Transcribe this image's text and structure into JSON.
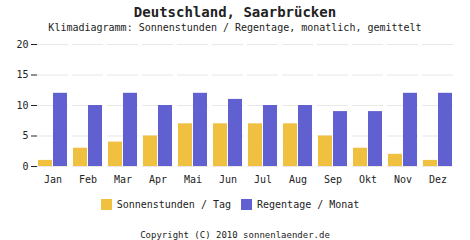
{
  "chart_data": {
    "type": "bar",
    "title": "Deutschland,  Saarbrücken",
    "subtitle": "Klimadiagramm: Sonnenstunden / Regentage, monatlich, gemittelt",
    "caption": "Copyright (C) 2010 sonnenlaender.de",
    "categories": [
      "Jan",
      "Feb",
      "Mar",
      "Apr",
      "Mai",
      "Jun",
      "Jul",
      "Aug",
      "Sep",
      "Okt",
      "Nov",
      "Dez"
    ],
    "series": [
      {
        "name": "Sonnenstunden / Tag",
        "color": "#f0c040",
        "values": [
          1,
          3,
          4,
          5,
          7,
          7,
          7,
          7,
          5,
          3,
          2,
          1
        ]
      },
      {
        "name": "Regentage / Monat",
        "color": "#6060d0",
        "values": [
          12,
          10,
          12,
          10,
          12,
          11,
          10,
          10,
          9,
          9,
          12,
          12
        ]
      }
    ],
    "ylim": [
      0,
      20
    ],
    "yticks": [
      0,
      5,
      10,
      15,
      20
    ],
    "grid": true,
    "legend": "lower center"
  }
}
